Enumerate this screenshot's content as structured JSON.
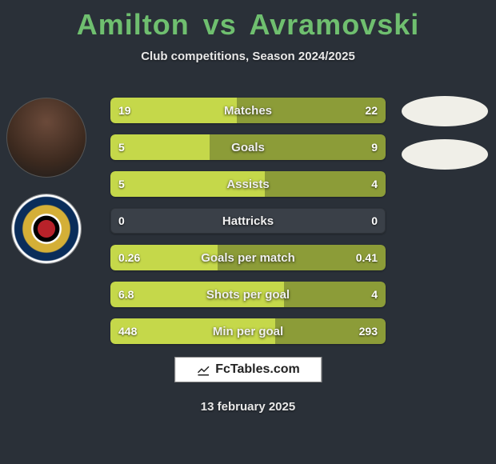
{
  "title": {
    "player1": "Amilton",
    "vs": "vs",
    "player2": "Avramovski"
  },
  "subtitle": "Club competitions, Season 2024/2025",
  "colors": {
    "title_green": "#6fbf6f",
    "bar_track": "#3a4048",
    "bar_left": "#c5d84a",
    "bar_right": "#8c9c38",
    "background": "#2a3038",
    "oval": "#f0efe8"
  },
  "stats": [
    {
      "label": "Matches",
      "left_val": "19",
      "right_val": "22",
      "left_pct": 46,
      "right_pct": 54
    },
    {
      "label": "Goals",
      "left_val": "5",
      "right_val": "9",
      "left_pct": 36,
      "right_pct": 64
    },
    {
      "label": "Assists",
      "left_val": "5",
      "right_val": "4",
      "left_pct": 56,
      "right_pct": 44
    },
    {
      "label": "Hattricks",
      "left_val": "0",
      "right_val": "0",
      "left_pct": 0,
      "right_pct": 0
    },
    {
      "label": "Goals per match",
      "left_val": "0.26",
      "right_val": "0.41",
      "left_pct": 39,
      "right_pct": 61
    },
    {
      "label": "Shots per goal",
      "left_val": "6.8",
      "right_val": "4",
      "left_pct": 63,
      "right_pct": 37
    },
    {
      "label": "Min per goal",
      "left_val": "448",
      "right_val": "293",
      "left_pct": 60,
      "right_pct": 40
    }
  ],
  "footer": {
    "site": "FcTables.com",
    "date": "13 february 2025"
  }
}
